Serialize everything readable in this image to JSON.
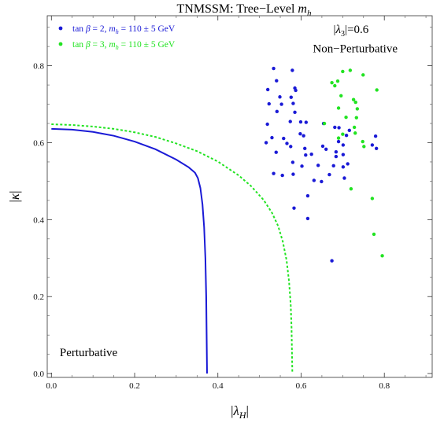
{
  "chart_data": {
    "type": "scatter",
    "title": "TNMSSM: Tree−Level m_h",
    "title_parts": {
      "main": "TNMSSM: Tree−Level ",
      "var": "m",
      "sub": "h"
    },
    "xlabel": "|λ_H|",
    "xlabel_parts": {
      "var": "λ",
      "sub": "H"
    },
    "ylabel": "|κ|",
    "ylabel_parts": {
      "var": "κ"
    },
    "xlim": [
      -0.01,
      0.915
    ],
    "ylim": [
      -0.01,
      0.93
    ],
    "x_ticks": [
      0.0,
      0.2,
      0.4,
      0.6,
      0.8
    ],
    "y_ticks": [
      0.0,
      0.2,
      0.4,
      0.6,
      0.8
    ],
    "tick_format": "0.0",
    "grid": false,
    "legend_position": "top-left",
    "annotations": [
      {
        "id": "lambda3",
        "parts": {
          "var": "λ",
          "sub": "3",
          "rest": "=0.6"
        },
        "x": 0.72,
        "y": 0.885,
        "anchor": "middle"
      },
      {
        "id": "nonpert",
        "text": "Non−Perturbative",
        "x": 0.73,
        "y": 0.835,
        "anchor": "middle"
      },
      {
        "id": "pert",
        "text": "Perturbative",
        "x": 0.02,
        "y": 0.045,
        "anchor": "start"
      }
    ],
    "series": [
      {
        "id": "tb2",
        "legend": {
          "pre": "tan ",
          "beta": "β",
          "mid": " = 2, ",
          "m": "m",
          "sub": "h",
          "post": " = 110 ± 5 GeV"
        },
        "color": "#1a1ad6",
        "curve": [
          [
            0.0,
            0.636
          ],
          [
            0.05,
            0.634
          ],
          [
            0.1,
            0.628
          ],
          [
            0.15,
            0.618
          ],
          [
            0.2,
            0.603
          ],
          [
            0.25,
            0.583
          ],
          [
            0.3,
            0.556
          ],
          [
            0.33,
            0.536
          ],
          [
            0.345,
            0.522
          ],
          [
            0.352,
            0.508
          ],
          [
            0.358,
            0.482
          ],
          [
            0.363,
            0.44
          ],
          [
            0.367,
            0.38
          ],
          [
            0.37,
            0.3
          ],
          [
            0.372,
            0.2
          ],
          [
            0.373,
            0.1
          ],
          [
            0.374,
            0.0
          ]
        ],
        "points": [
          [
            0.534,
            0.793
          ],
          [
            0.52,
            0.738
          ],
          [
            0.523,
            0.701
          ],
          [
            0.541,
            0.761
          ],
          [
            0.549,
            0.719
          ],
          [
            0.542,
            0.681
          ],
          [
            0.553,
            0.7
          ],
          [
            0.579,
            0.788
          ],
          [
            0.585,
            0.742
          ],
          [
            0.576,
            0.718
          ],
          [
            0.581,
            0.702
          ],
          [
            0.587,
            0.736
          ],
          [
            0.585,
            0.679
          ],
          [
            0.574,
            0.655
          ],
          [
            0.566,
            0.598
          ],
          [
            0.53,
            0.613
          ],
          [
            0.54,
            0.575
          ],
          [
            0.558,
            0.611
          ],
          [
            0.516,
            0.6
          ],
          [
            0.519,
            0.648
          ],
          [
            0.534,
            0.52
          ],
          [
            0.555,
            0.515
          ],
          [
            0.575,
            0.59
          ],
          [
            0.58,
            0.549
          ],
          [
            0.581,
            0.518
          ],
          [
            0.583,
            0.43
          ],
          [
            0.609,
            0.585
          ],
          [
            0.606,
            0.618
          ],
          [
            0.611,
            0.568
          ],
          [
            0.602,
            0.539
          ],
          [
            0.625,
            0.57
          ],
          [
            0.631,
            0.502
          ],
          [
            0.641,
            0.541
          ],
          [
            0.649,
            0.499
          ],
          [
            0.66,
            0.583
          ],
          [
            0.668,
            0.517
          ],
          [
            0.678,
            0.54
          ],
          [
            0.684,
            0.564
          ],
          [
            0.684,
            0.576
          ],
          [
            0.69,
            0.603
          ],
          [
            0.701,
            0.594
          ],
          [
            0.701,
            0.569
          ],
          [
            0.701,
            0.537
          ],
          [
            0.704,
            0.508
          ],
          [
            0.712,
            0.545
          ],
          [
            0.709,
            0.619
          ],
          [
            0.716,
            0.632
          ],
          [
            0.691,
            0.639
          ],
          [
            0.681,
            0.64
          ],
          [
            0.654,
            0.65
          ],
          [
            0.652,
            0.591
          ],
          [
            0.616,
            0.403
          ],
          [
            0.616,
            0.462
          ],
          [
            0.599,
            0.654
          ],
          [
            0.612,
            0.653
          ],
          [
            0.598,
            0.623
          ],
          [
            0.779,
            0.617
          ],
          [
            0.781,
            0.585
          ],
          [
            0.771,
            0.594
          ],
          [
            0.674,
            0.293
          ]
        ]
      },
      {
        "id": "tb3",
        "legend": {
          "pre": "tan ",
          "beta": "β",
          "mid": " = 3, ",
          "m": "m",
          "sub": "h",
          "post": " = 110 ± 5 GeV"
        },
        "color": "#22e322",
        "curve": [
          [
            0.0,
            0.648
          ],
          [
            0.05,
            0.646
          ],
          [
            0.1,
            0.642
          ],
          [
            0.15,
            0.636
          ],
          [
            0.2,
            0.627
          ],
          [
            0.25,
            0.615
          ],
          [
            0.3,
            0.598
          ],
          [
            0.35,
            0.578
          ],
          [
            0.4,
            0.551
          ],
          [
            0.45,
            0.515
          ],
          [
            0.48,
            0.487
          ],
          [
            0.51,
            0.451
          ],
          [
            0.53,
            0.418
          ],
          [
            0.545,
            0.383
          ],
          [
            0.556,
            0.343
          ],
          [
            0.565,
            0.295
          ],
          [
            0.571,
            0.24
          ],
          [
            0.575,
            0.18
          ],
          [
            0.577,
            0.12
          ],
          [
            0.578,
            0.06
          ],
          [
            0.579,
            0.0
          ]
        ],
        "points": [
          [
            0.656,
            0.65
          ],
          [
            0.7,
            0.785
          ],
          [
            0.718,
            0.788
          ],
          [
            0.674,
            0.756
          ],
          [
            0.681,
            0.748
          ],
          [
            0.688,
            0.76
          ],
          [
            0.696,
            0.722
          ],
          [
            0.726,
            0.712
          ],
          [
            0.731,
            0.705
          ],
          [
            0.735,
            0.688
          ],
          [
            0.749,
            0.776
          ],
          [
            0.782,
            0.737
          ],
          [
            0.69,
            0.69
          ],
          [
            0.708,
            0.666
          ],
          [
            0.728,
            0.64
          ],
          [
            0.733,
            0.665
          ],
          [
            0.73,
            0.625
          ],
          [
            0.7,
            0.622
          ],
          [
            0.69,
            0.612
          ],
          [
            0.748,
            0.603
          ],
          [
            0.751,
            0.59
          ],
          [
            0.72,
            0.48
          ],
          [
            0.771,
            0.455
          ],
          [
            0.775,
            0.362
          ],
          [
            0.795,
            0.306
          ]
        ]
      }
    ]
  }
}
